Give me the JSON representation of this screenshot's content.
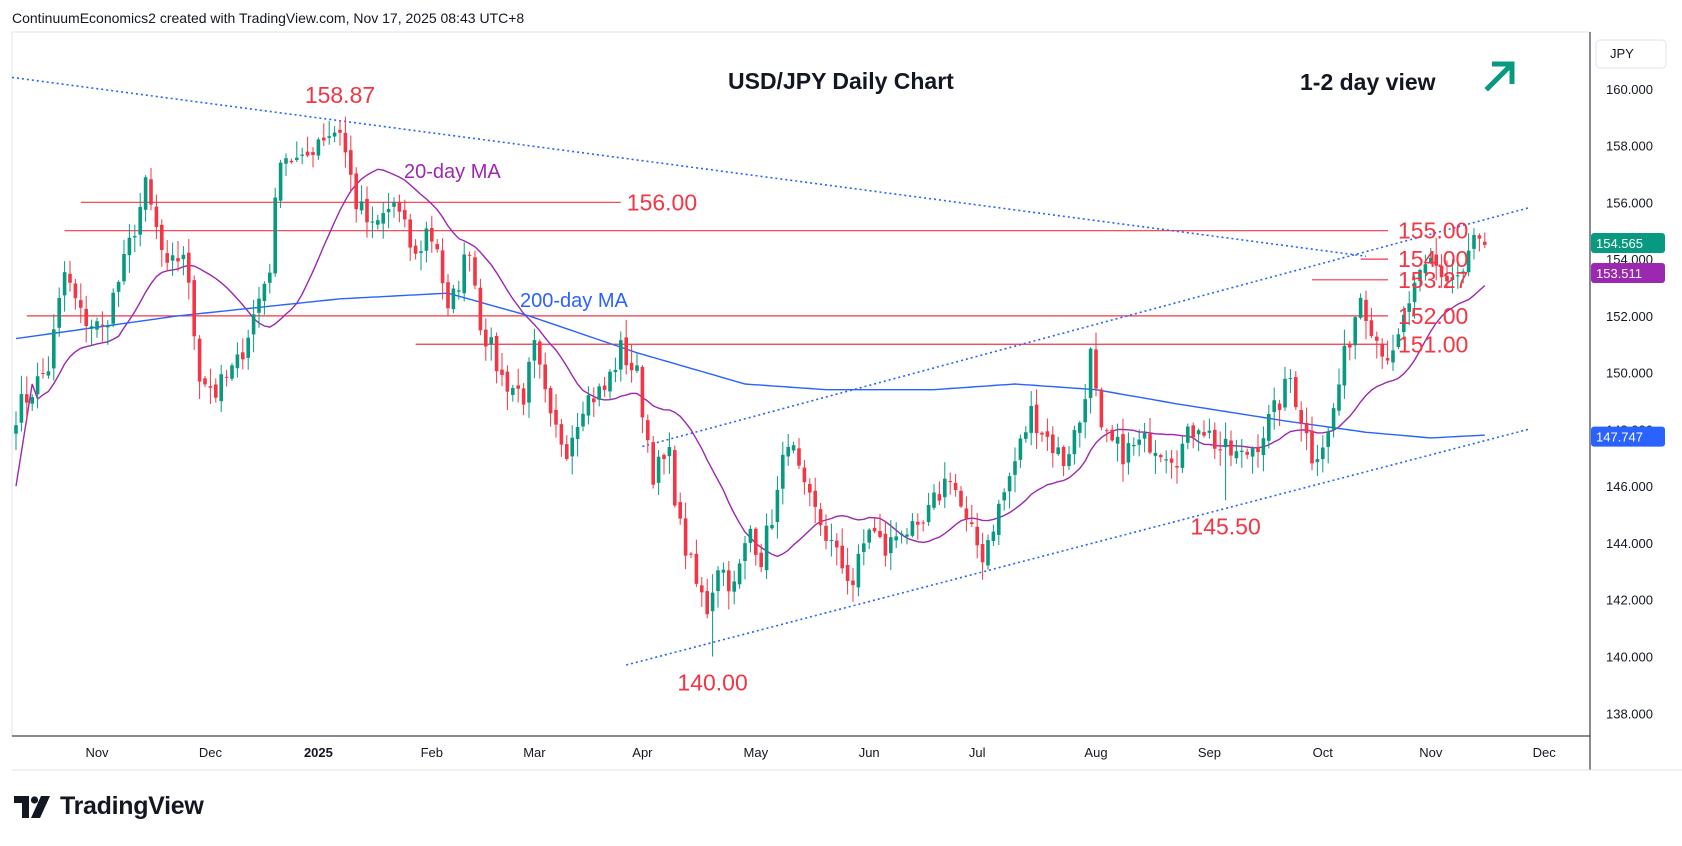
{
  "header": {
    "credit": "ContinuumEconomics2 created with TradingView.com, Nov 17, 2025 08:43 UTC+8"
  },
  "brand": {
    "name": "TradingView"
  },
  "chart_data": {
    "type": "candlestick",
    "title": "USD/JPY Daily Chart",
    "view_label": "1-2 day view",
    "view_direction": "up",
    "currency": "JPY",
    "ylim": [
      137.2,
      162.0
    ],
    "y_ticks": [
      "138.000",
      "140.000",
      "142.000",
      "144.000",
      "146.000",
      "148.000",
      "150.000",
      "152.000",
      "154.000",
      "156.000",
      "158.000",
      "160.000"
    ],
    "x_ticks": [
      {
        "label": "Nov",
        "bar": 15
      },
      {
        "label": "Dec",
        "bar": 36
      },
      {
        "label": "2025",
        "bar": 56,
        "bold": true
      },
      {
        "label": "Feb",
        "bar": 77
      },
      {
        "label": "Mar",
        "bar": 96
      },
      {
        "label": "Apr",
        "bar": 116
      },
      {
        "label": "May",
        "bar": 137
      },
      {
        "label": "Jun",
        "bar": 158
      },
      {
        "label": "Jul",
        "bar": 178
      },
      {
        "label": "Aug",
        "bar": 200
      },
      {
        "label": "Sep",
        "bar": 221
      },
      {
        "label": "Oct",
        "bar": 242
      },
      {
        "label": "Nov",
        "bar": 262
      },
      {
        "label": "Dec",
        "bar": 283
      }
    ],
    "bars": 288,
    "ohlc_anchors": [
      [
        0,
        148.6
      ],
      [
        6,
        150.2
      ],
      [
        9,
        153.5
      ],
      [
        12,
        152.0
      ],
      [
        16,
        151.5
      ],
      [
        20,
        153.8
      ],
      [
        24,
        156.5
      ],
      [
        28,
        153.5
      ],
      [
        31,
        154.3
      ],
      [
        34,
        150.0
      ],
      [
        37,
        149.3
      ],
      [
        41,
        150.3
      ],
      [
        44,
        152.0
      ],
      [
        47,
        153.8
      ],
      [
        49,
        157.8
      ],
      [
        53,
        157.3
      ],
      [
        56,
        158.3
      ],
      [
        60,
        158.6
      ],
      [
        63,
        156.0
      ],
      [
        66,
        155.0
      ],
      [
        70,
        156.0
      ],
      [
        74,
        154.0
      ],
      [
        76,
        155.0
      ],
      [
        78,
        154.5
      ],
      [
        80,
        152.0
      ],
      [
        84,
        154.5
      ],
      [
        86,
        151.8
      ],
      [
        90,
        149.8
      ],
      [
        94,
        149.2
      ],
      [
        96,
        150.8
      ],
      [
        99,
        148.2
      ],
      [
        102,
        147.4
      ],
      [
        105,
        149.0
      ],
      [
        109,
        149.4
      ],
      [
        112,
        150.8
      ],
      [
        115,
        149.9
      ],
      [
        118,
        146.5
      ],
      [
        121,
        147.0
      ],
      [
        123,
        144.5
      ],
      [
        126,
        142.5
      ],
      [
        128,
        141.7
      ],
      [
        130,
        143.3
      ],
      [
        133,
        142.4
      ],
      [
        136,
        144.5
      ],
      [
        138,
        143.5
      ],
      [
        141,
        145.7
      ],
      [
        143,
        147.8
      ],
      [
        146,
        145.7
      ],
      [
        149,
        144.7
      ],
      [
        152,
        143.5
      ],
      [
        155,
        142.6
      ],
      [
        158,
        144.6
      ],
      [
        161,
        143.7
      ],
      [
        164,
        144.6
      ],
      [
        167,
        144.2
      ],
      [
        170,
        145.4
      ],
      [
        173,
        146.5
      ],
      [
        176,
        144.6
      ],
      [
        179,
        143.6
      ],
      [
        181,
        144.7
      ],
      [
        184,
        146.3
      ],
      [
        188,
        148.6
      ],
      [
        191,
        147.7
      ],
      [
        194,
        146.9
      ],
      [
        197,
        148.3
      ],
      [
        199,
        150.6
      ],
      [
        201,
        147.7
      ],
      [
        205,
        147.2
      ],
      [
        210,
        147.6
      ],
      [
        215,
        147.1
      ],
      [
        219,
        148.3
      ],
      [
        223,
        147.3
      ],
      [
        227,
        147.0
      ],
      [
        230,
        147.6
      ],
      [
        233,
        148.6
      ],
      [
        236,
        149.8
      ],
      [
        240,
        147.1
      ],
      [
        243,
        147.8
      ],
      [
        246,
        150.5
      ],
      [
        249,
        152.8
      ],
      [
        252,
        151.2
      ],
      [
        255,
        150.4
      ],
      [
        258,
        152.5
      ],
      [
        262,
        153.9
      ],
      [
        265,
        153.3
      ],
      [
        268,
        153.5
      ],
      [
        270,
        154.7
      ],
      [
        272,
        154.5
      ]
    ],
    "last_price": "154.565",
    "last_price_color": "#089981",
    "ma200_label_value": "153.511",
    "ma200_label_color": "#9c27b0",
    "ma_tag_value": "147.747",
    "ma_tag_color": "#2962ff",
    "horizontal_levels": [
      {
        "label": "155.00",
        "value": 155.0,
        "from_bar": 9
      },
      {
        "label": "154.00",
        "value": 154.0,
        "from_bar": 249
      },
      {
        "label": "153.27",
        "value": 153.27,
        "from_bar": 240
      },
      {
        "label": "152.00",
        "value": 152.0,
        "from_bar": 2
      },
      {
        "label": "151.00",
        "value": 151.0,
        "from_bar": 74
      },
      {
        "label": "156.00",
        "value": 156.0,
        "from_bar": 12,
        "to_bar": 112
      }
    ],
    "annotations": [
      {
        "label": "158.87",
        "bar": 60,
        "value": 158.87
      },
      {
        "label": "140.00",
        "bar": 129,
        "value": 140.0
      },
      {
        "label": "145.50",
        "bar": 224,
        "value": 145.5
      }
    ],
    "ma_labels": {
      "ma20": "20-day MA",
      "ma200": "200-day MA"
    },
    "colors": {
      "up": "#089981",
      "down": "#f23645",
      "level_line": "#f23645",
      "level_text": "#f23645",
      "trend_line": "#2962ff",
      "ma20": "#9c27b0",
      "ma200": "#2962ff",
      "arrow": "#089981"
    }
  }
}
